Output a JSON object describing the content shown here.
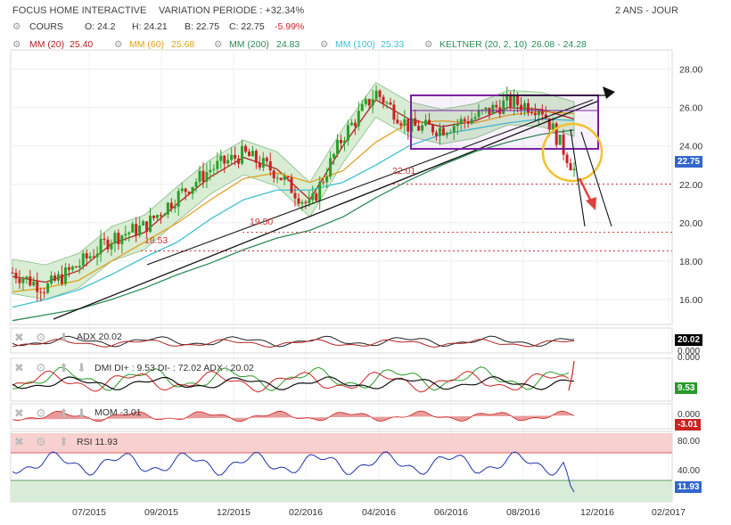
{
  "header": {
    "name": "FOCUS HOME INTERACTIVE",
    "variation": "VARIATION PERIODE : +32.34%",
    "period": "2 ANS - JOUR"
  },
  "legend": {
    "cours": "COURS",
    "open": "O: 24.2",
    "high": "H: 24.21",
    "low": "B: 22.75",
    "close": "C: 22.75",
    "change": "-5.99%",
    "mm20": "MM (20)",
    "mm20_val": "25.40",
    "mm60": "MM (60)",
    "mm60_val": "25.68",
    "mm200": "MM (200)",
    "mm200_val": "24.83",
    "mm100": "MM (100)",
    "mm100_val": "25.33",
    "keltner": "KELTNER (20, 2, 10)",
    "keltner_val": "26.08 - 24.28"
  },
  "colors": {
    "candle_up": "#2aa02a",
    "candle_down": "#cc2222",
    "mm20": "#b22222",
    "mm60": "#e0a020",
    "mm200": "#2e8b57",
    "mm100": "#40c0d0",
    "keltner_fill": "#c8e6c0",
    "trendline": "#111111",
    "rectangle": "#7b1fa2",
    "circle": "#f2c12e",
    "arrow_red": "#e04040",
    "support": "#cc3333",
    "last_price_box": "#3366cc",
    "rsi_overbought": "#f8d0d0",
    "rsi_oversold": "#d8ecd8",
    "rsi_line": "#2233aa"
  },
  "chart_data": {
    "type": "line",
    "title": "FOCUS HOME INTERACTIVE",
    "x_ticks": [
      "07/2015",
      "09/2015",
      "12/2015",
      "02/2016",
      "04/2016",
      "06/2016",
      "08/2016",
      "12/2016",
      "02/2017"
    ],
    "y_ticks": [
      "28.00",
      "26.00",
      "24.00",
      "22.00",
      "20.00",
      "18.00",
      "16.00"
    ],
    "ylim": [
      14.7,
      29.0
    ],
    "last_price": "22.75",
    "x": [
      "2015-05",
      "2015-06",
      "2015-07",
      "2015-08",
      "2015-09",
      "2015-10",
      "2015-11",
      "2015-12",
      "2016-01",
      "2016-02",
      "2016-03",
      "2016-04",
      "2016-05",
      "2016-06",
      "2016-07",
      "2016-08",
      "2016-09",
      "2016-10"
    ],
    "series": [
      {
        "name": "COURS",
        "values": [
          17.4,
          16.6,
          17.8,
          19.2,
          19.8,
          21.4,
          22.8,
          23.6,
          22.6,
          20.8,
          24.5,
          26.8,
          25.0,
          24.9,
          25.5,
          26.3,
          26.0,
          22.75
        ]
      },
      {
        "name": "MM (20)",
        "values": [
          17.2,
          16.9,
          17.5,
          18.9,
          19.5,
          21.0,
          22.4,
          23.4,
          22.8,
          21.2,
          24.0,
          26.4,
          25.4,
          25.0,
          25.3,
          26.0,
          25.9,
          25.4
        ]
      },
      {
        "name": "MM (60)",
        "values": [
          16.4,
          16.6,
          17.0,
          18.0,
          19.0,
          20.0,
          21.2,
          22.3,
          22.6,
          22.1,
          22.7,
          24.2,
          25.2,
          25.3,
          25.2,
          25.6,
          25.8,
          25.68
        ]
      },
      {
        "name": "MM (100)",
        "values": [
          15.6,
          16.0,
          16.5,
          17.3,
          18.2,
          19.0,
          20.2,
          21.2,
          21.7,
          21.7,
          22.1,
          23.0,
          24.0,
          24.6,
          24.9,
          25.2,
          25.4,
          25.33
        ]
      },
      {
        "name": "MM (200)",
        "values": [
          14.9,
          15.2,
          15.5,
          16.0,
          16.6,
          17.3,
          17.9,
          18.6,
          19.2,
          19.6,
          20.3,
          21.3,
          22.2,
          23.0,
          23.7,
          24.2,
          24.6,
          24.83
        ]
      }
    ],
    "annotations": [
      "22.01",
      "19.50",
      "18.53"
    ],
    "support_levels": [
      22.01,
      19.5,
      18.53
    ],
    "rectangle": {
      "x_from": "2016-05",
      "x_to": "2016-10",
      "y_from": 23.3,
      "y_to": 26.0
    },
    "sub_panels": [
      {
        "name": "ADX",
        "label": "ADX",
        "value": "20.02",
        "axis": [
          "0.000"
        ],
        "value_color": "#000000"
      },
      {
        "name": "DMI",
        "label": "DMI DI+ : 9.53 DI- : 72.02 ADX : 20.02",
        "value": "9.53",
        "axis": [
          "0.000"
        ],
        "value_color": "#2a9a2a"
      },
      {
        "name": "MOM",
        "label": "MOM",
        "value": "-3.01",
        "axis": [
          "0.000"
        ],
        "value_color": "#cc2222"
      },
      {
        "name": "RSI",
        "label": "RSI",
        "value": "11.93",
        "axis": [
          "80.00",
          "40.00"
        ],
        "value_color": "#3366cc"
      }
    ]
  }
}
